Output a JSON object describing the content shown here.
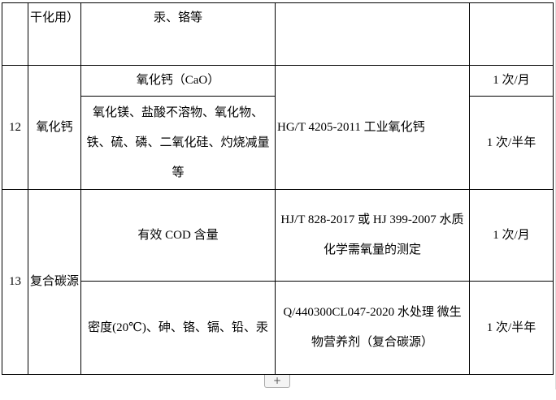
{
  "rows": {
    "prev": {
      "name": "干化用）",
      "item": "汞、铬等",
      "standard": "",
      "frequency": ""
    },
    "r12": {
      "no": "12",
      "name": "氧化钙",
      "item1": "氧化钙（CaO）",
      "freq1": "1 次/月",
      "item2": "氧化镁、盐酸不溶物、氧化物、铁、硫、磷、二氧化硅、灼烧减量等",
      "freq2": "1 次/半年",
      "standard": "HG/T 4205-2011 工业氧化钙"
    },
    "r13": {
      "no": "13",
      "name": "复合碳源",
      "item1": "有效 COD 含量",
      "standard1": "HJ/T 828-2017 或 HJ 399-2007 水质 化学需氧量的测定",
      "freq1": "1 次/月",
      "item2": "密度(20℃)、砷、铬、镉、铅、汞",
      "standard2": "Q/440300CL047-2020 水处理 微生物营养剂（复合碳源）",
      "freq2": "1 次/半年"
    }
  },
  "add_row_button": "+"
}
